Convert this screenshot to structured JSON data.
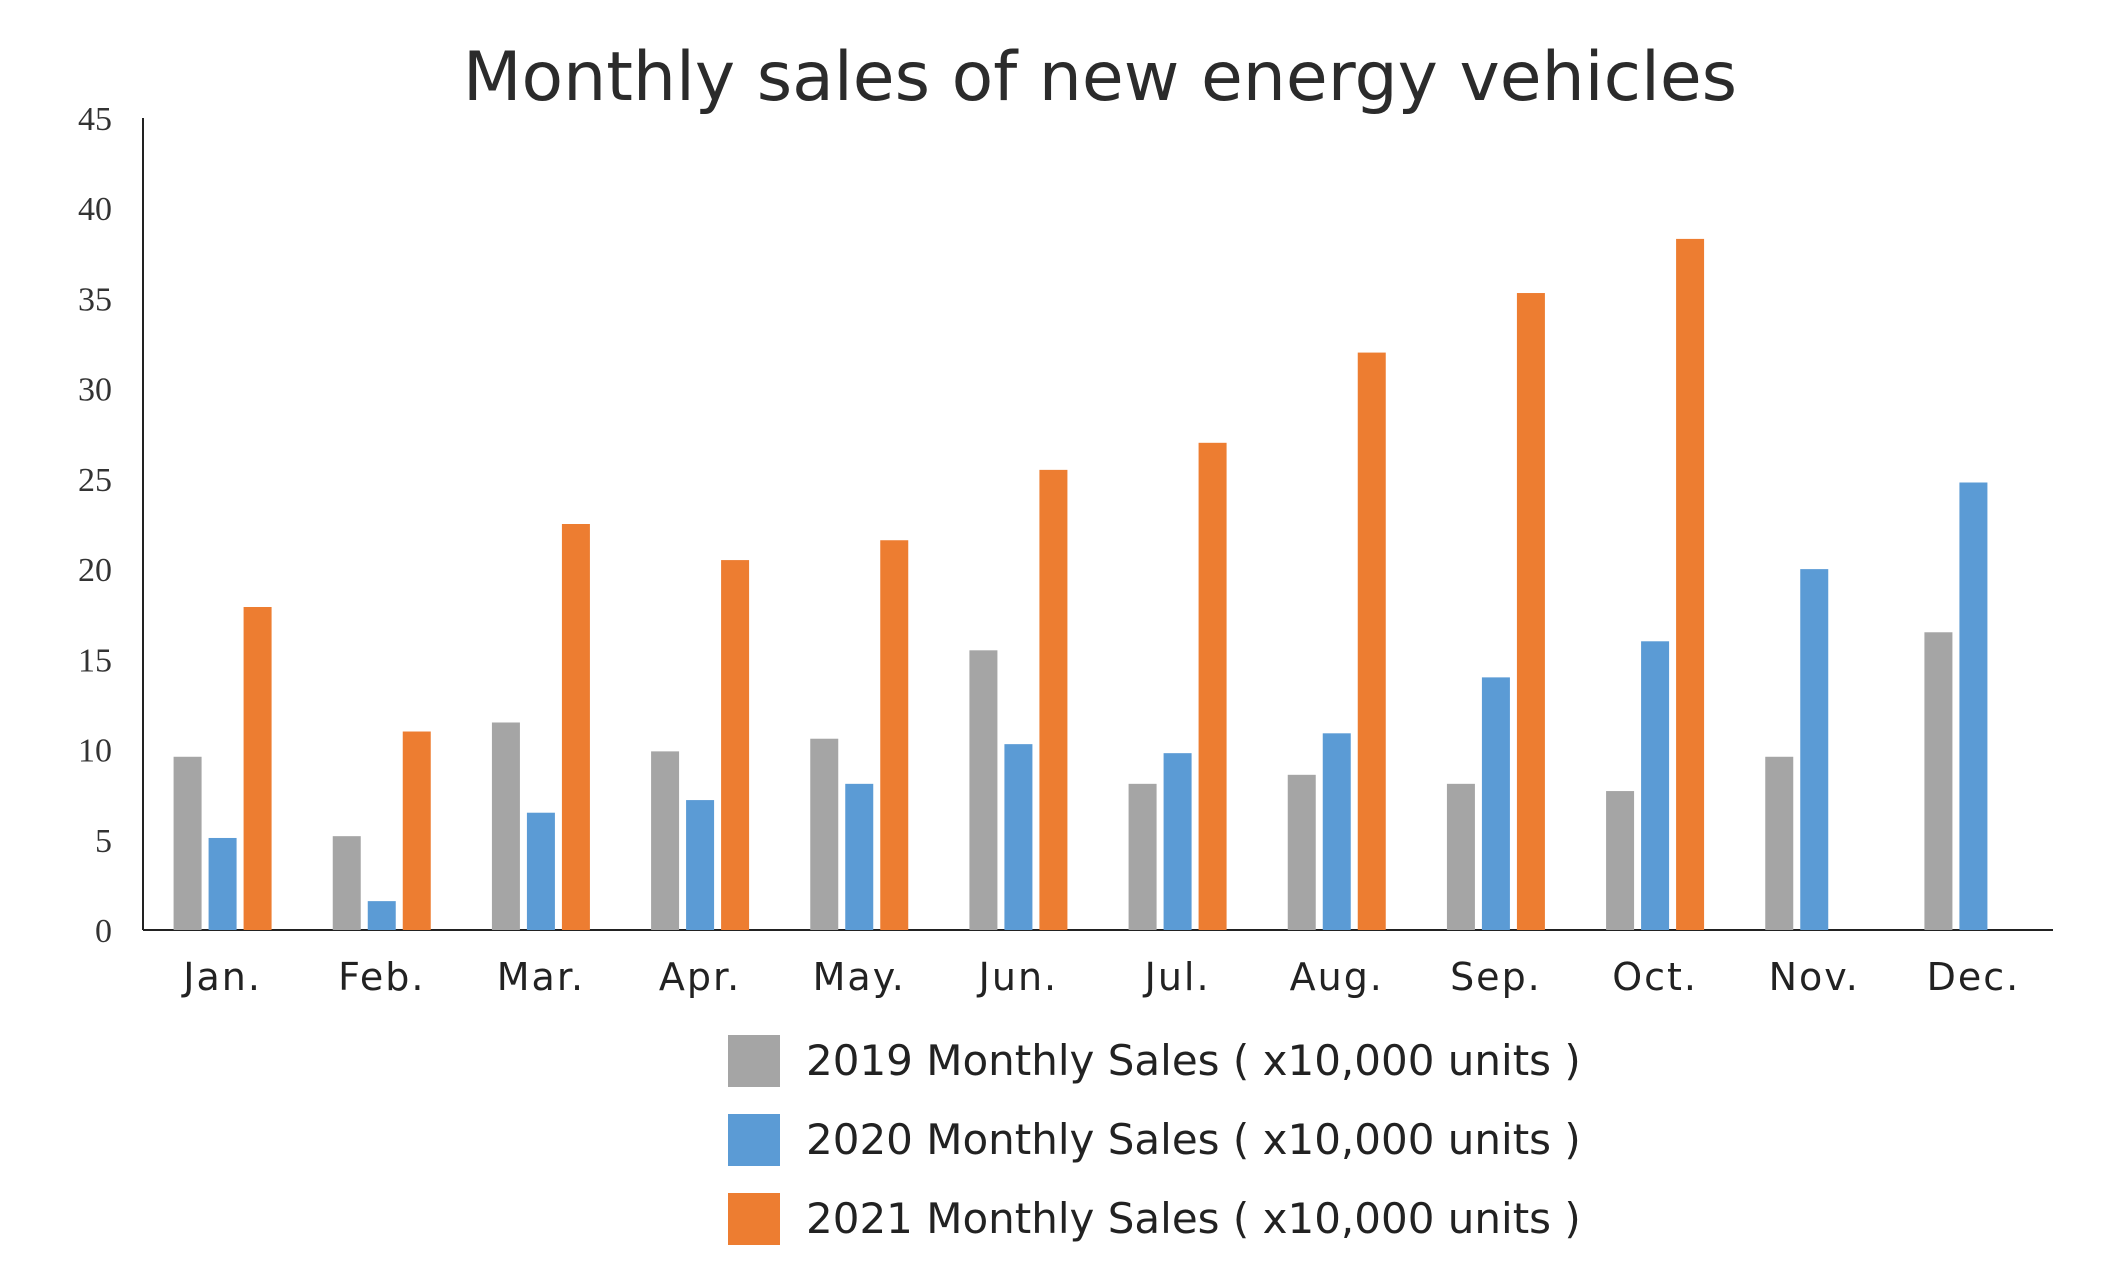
{
  "chart_data": {
    "type": "bar",
    "title": "Monthly sales of new energy vehicles",
    "xlabel": "",
    "ylabel": "",
    "ylim": [
      0,
      45
    ],
    "yticks": [
      0,
      5,
      10,
      15,
      20,
      25,
      30,
      35,
      40,
      45
    ],
    "grid": false,
    "legend_position": "bottom",
    "categories": [
      "Jan.",
      "Feb.",
      "Mar.",
      "Apr.",
      "May.",
      "Jun.",
      "Jul.",
      "Aug.",
      "Sep.",
      "Oct.",
      "Nov.",
      "Dec."
    ],
    "series": [
      {
        "name": "2019 Monthly Sales ( x10,000 units )",
        "color": "#a5a5a5",
        "values": [
          9.6,
          5.2,
          11.5,
          9.9,
          10.6,
          15.5,
          8.1,
          8.6,
          8.1,
          7.7,
          9.6,
          16.5
        ]
      },
      {
        "name": "2020 Monthly Sales ( x10,000 units )",
        "color": "#5b9bd5",
        "values": [
          5.1,
          1.6,
          6.5,
          7.2,
          8.1,
          10.3,
          9.8,
          10.9,
          14.0,
          16.0,
          20.0,
          24.8
        ]
      },
      {
        "name": "2021 Monthly Sales ( x10,000 units )",
        "color": "#ed7d31",
        "values": [
          17.9,
          11.0,
          22.5,
          20.5,
          21.6,
          25.5,
          27.0,
          32.0,
          35.3,
          38.3,
          null,
          null
        ]
      }
    ]
  }
}
